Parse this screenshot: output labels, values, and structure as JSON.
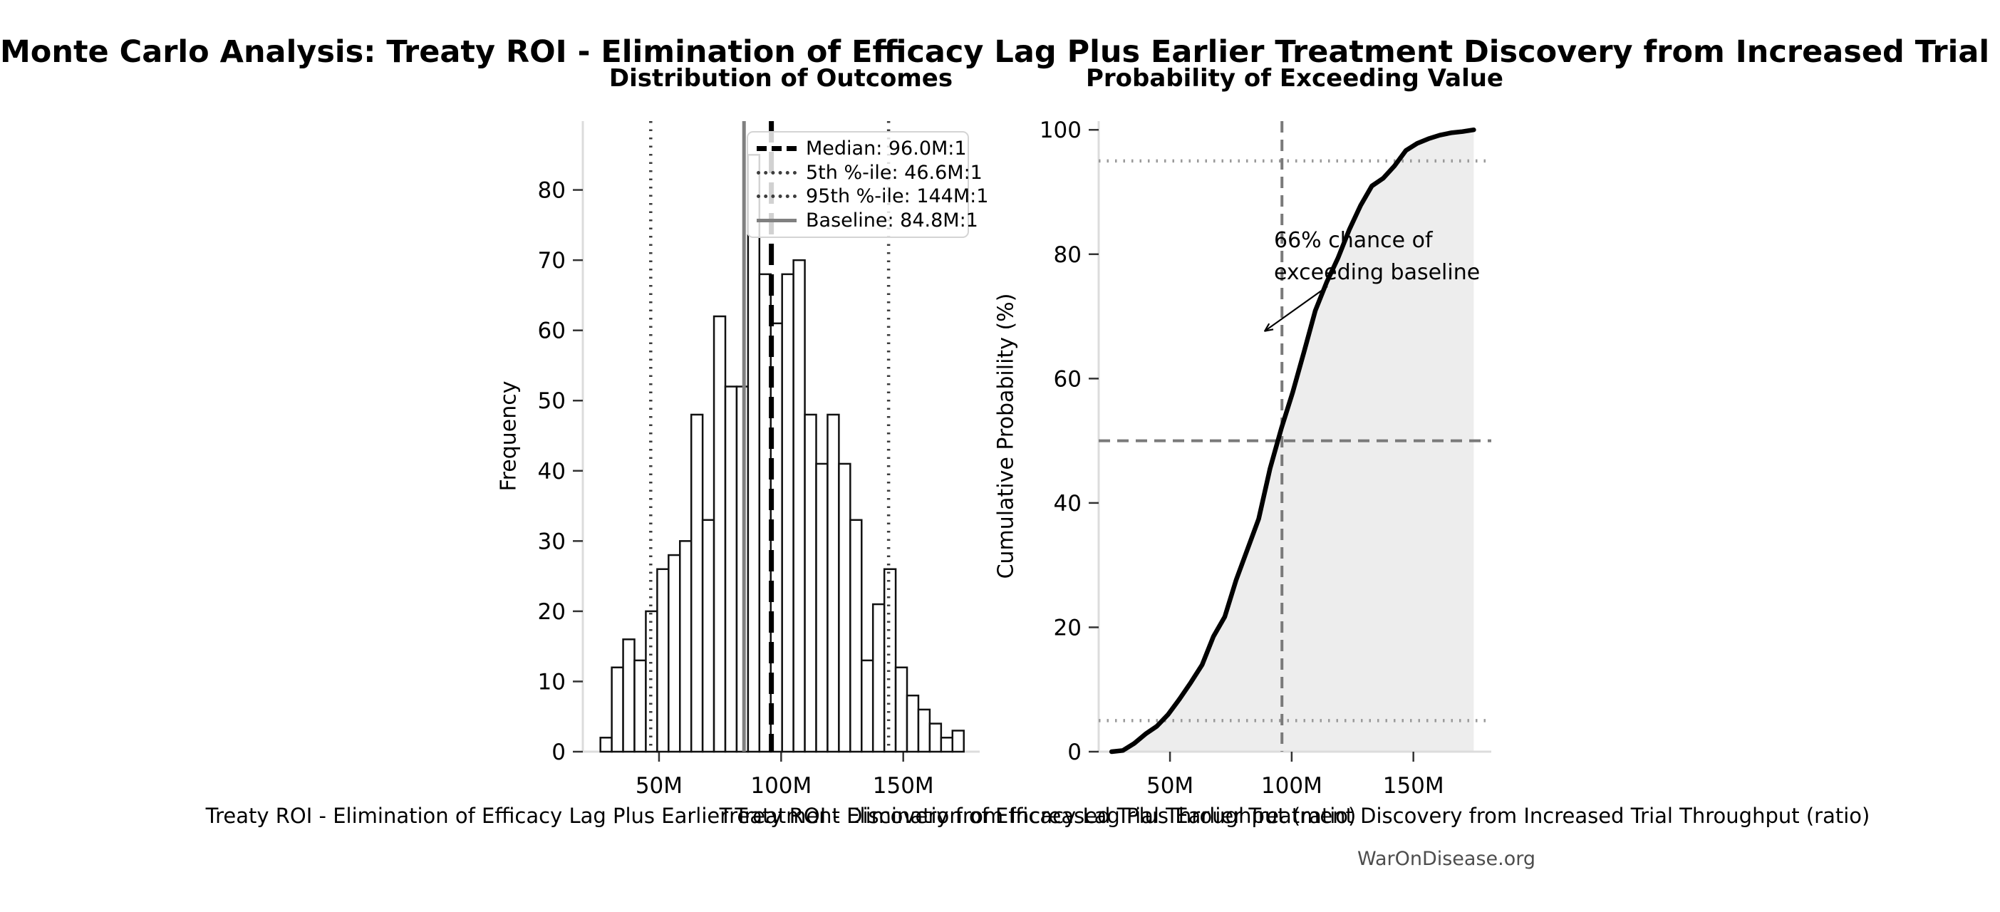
{
  "figure": {
    "title": "Monte Carlo Analysis: Treaty ROI - Elimination of Efficacy Lag Plus Earlier Treatment Discovery from Increased Trial Throughput",
    "watermark": "WarOnDisease.org",
    "background": "#ffffff"
  },
  "chart_data": [
    {
      "type": "bar",
      "subtype": "histogram",
      "title": "Distribution of Outcomes",
      "xlabel": "Treaty ROI - Elimination of Efficacy Lag Plus Earlier Treatment Discovery from Increased Trial Throughput (ratio)",
      "ylabel": "Frequency",
      "value_unit": "M",
      "bin_start_m": 26,
      "bin_width_m": 4.65,
      "frequencies": [
        2,
        12,
        16,
        13,
        20,
        26,
        28,
        30,
        48,
        33,
        62,
        52,
        52,
        85,
        68,
        61,
        68,
        70,
        48,
        41,
        48,
        41,
        33,
        13,
        21,
        26,
        12,
        8,
        6,
        4,
        2,
        3
      ],
      "bar_fill": "#ffffff",
      "bar_stroke": "#111111",
      "x_ticks": [
        {
          "v": 50,
          "label": "50M"
        },
        {
          "v": 100,
          "label": "100M"
        },
        {
          "v": 150,
          "label": "150M"
        }
      ],
      "y_ticks": [
        0,
        10,
        20,
        30,
        40,
        50,
        60,
        70,
        80
      ],
      "xlim": [
        18.8,
        181.3
      ],
      "ylim": [
        0,
        89.8
      ],
      "grid": false,
      "legend_position": "upper right",
      "ref_lines": [
        {
          "id": "median",
          "v": 96.0,
          "style": "dashed-bold",
          "color": "#000000",
          "label": "Median: 96.0M:1"
        },
        {
          "id": "p5",
          "v": 46.6,
          "style": "dotted",
          "color": "#3d3d3d",
          "label": "5th %-ile: 46.6M:1"
        },
        {
          "id": "p95",
          "v": 144,
          "style": "dotted",
          "color": "#3d3d3d",
          "label": "95th %-ile: 144M:1"
        },
        {
          "id": "baseline",
          "v": 84.8,
          "style": "solid",
          "color": "#808080",
          "label": "Baseline: 84.8M:1"
        }
      ]
    },
    {
      "type": "line",
      "subtype": "cdf",
      "title": "Probability of Exceeding Value",
      "xlabel": "Treaty ROI - Elimination of Efficacy Lag Plus Earlier Treatment Discovery from Increased Trial Throughput (ratio)",
      "ylabel": "Cumulative Probability (%)",
      "derived_from": "chart_data.0.frequencies",
      "line_color": "#000000",
      "fill_color": "#e3e3e3",
      "x_ticks": [
        {
          "v": 50,
          "label": "50M"
        },
        {
          "v": 100,
          "label": "100M"
        },
        {
          "v": 150,
          "label": "150M"
        }
      ],
      "y_ticks": [
        0,
        20,
        40,
        60,
        80,
        100
      ],
      "xlim": [
        20.7,
        182
      ],
      "ylim": [
        0,
        101.4
      ],
      "grid": false,
      "ref_lines": [
        {
          "id": "p50-h",
          "axis": "y",
          "v": 50,
          "style": "dashed",
          "color": "#7a7a7a"
        },
        {
          "id": "p95-h",
          "axis": "y",
          "v": 95,
          "style": "dotted",
          "color": "#9a9a9a"
        },
        {
          "id": "p5-h",
          "axis": "y",
          "v": 5,
          "style": "dotted",
          "color": "#9a9a9a"
        },
        {
          "id": "median-v",
          "axis": "x",
          "v": 96,
          "style": "dashed",
          "color": "#7a7a7a"
        }
      ],
      "annotation": {
        "text": "66% chance of\nexceeding baseline",
        "arrow_tip_value": {
          "x_m": 88,
          "cumulative_pct": 67
        }
      }
    }
  ]
}
